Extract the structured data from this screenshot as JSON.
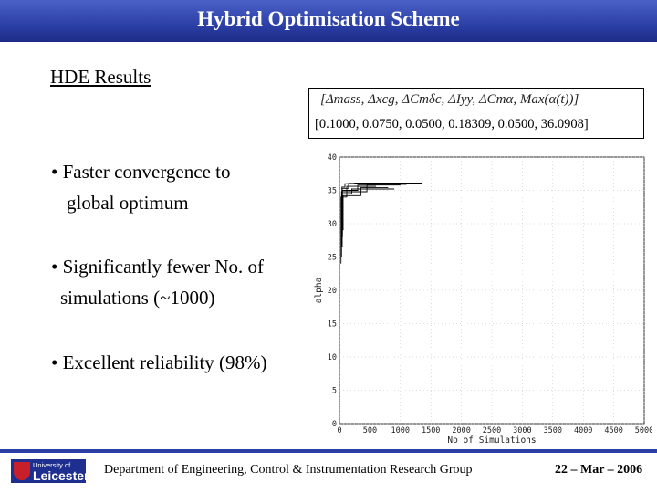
{
  "header": {
    "title": "Hybrid Optimisation Scheme"
  },
  "section_title": "HDE Results",
  "formula": {
    "text": "[Δmass, Δxcg, ΔCmδc, ΔIyy, ΔCmα, Max(α(t))]",
    "values": "[0.1000,  0.0750,  0.0500,  0.18309,  0.0500,  36.0908]"
  },
  "bullets": [
    {
      "line1": "•  Faster convergence to",
      "line2": "global optimum"
    },
    {
      "line1": "• Significantly fewer No. of",
      "line2": "simulations  (~1000)"
    },
    {
      "line1": "• Excellent reliability (98%)"
    }
  ],
  "chart_data": {
    "type": "line",
    "xlabel": "No  of Simulations",
    "ylabel": "alpha",
    "xlim": [
      0,
      5000
    ],
    "ylim": [
      0,
      40
    ],
    "xticks": [
      "0",
      "500",
      "1000",
      "1500",
      "2000",
      "2500",
      "3000",
      "3500",
      "4000",
      "4500",
      "5000"
    ],
    "yticks": [
      "0",
      "5",
      "10",
      "15",
      "20",
      "25",
      "30",
      "35",
      "40"
    ],
    "grid": true,
    "series": [
      {
        "x": [
          30,
          30,
          40,
          40,
          90,
          90,
          250,
          250,
          1350
        ],
        "y": [
          26,
          33,
          33,
          35.5,
          35.5,
          36,
          36,
          36.1,
          36.1
        ]
      },
      {
        "x": [
          40,
          40,
          200,
          200,
          900
        ],
        "y": [
          27,
          34.5,
          34.5,
          35.2,
          35.2
        ]
      },
      {
        "x": [
          25,
          25,
          120,
          120,
          600
        ],
        "y": [
          24,
          34,
          34,
          35.6,
          35.6
        ]
      },
      {
        "x": [
          50,
          50,
          300,
          300,
          1000
        ],
        "y": [
          28,
          35,
          35,
          35.8,
          35.8
        ]
      },
      {
        "x": [
          35,
          35,
          450,
          450,
          1100
        ],
        "y": [
          25,
          34.8,
          34.8,
          35.9,
          35.9
        ]
      },
      {
        "x": [
          45,
          45,
          150,
          150,
          500
        ],
        "y": [
          26.5,
          35.3,
          35.3,
          36.05,
          36.05
        ]
      },
      {
        "x": [
          60,
          60,
          350,
          350,
          800
        ],
        "y": [
          29,
          34.2,
          34.2,
          35.4,
          35.4
        ]
      }
    ]
  },
  "footer": {
    "logo_line1": "University of",
    "logo_line2": "Leicester",
    "department": "Department of Engineering, Control & Instrumentation Research Group",
    "date": "22 – Mar – 2006"
  }
}
